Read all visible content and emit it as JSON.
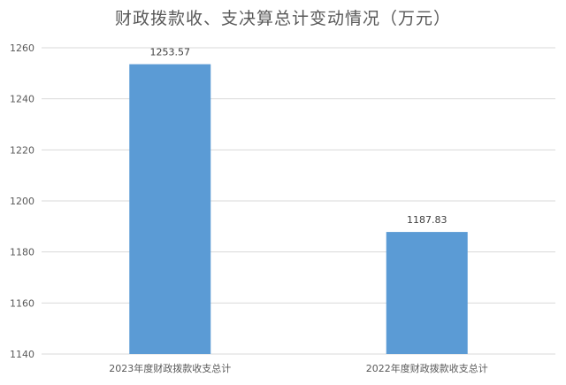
{
  "chart_data": {
    "type": "bar",
    "title": "财政拨款收、支决算总计变动情况（万元）",
    "xlabel": "",
    "ylabel": "",
    "categories": [
      "2023年度财政拨款收支总计",
      "2022年度财政拨款收支总计"
    ],
    "values": [
      1253.57,
      1187.83
    ],
    "value_labels": [
      "1253.57",
      "1187.83"
    ],
    "ylim": [
      1140,
      1260
    ],
    "yticks": [
      1140,
      1160,
      1180,
      1200,
      1220,
      1240,
      1260
    ],
    "grid": true,
    "legend": "none",
    "colors": {
      "bar": "#5b9bd5",
      "grid": "#d9d9d9",
      "text": "#595959",
      "label": "#404040"
    }
  }
}
